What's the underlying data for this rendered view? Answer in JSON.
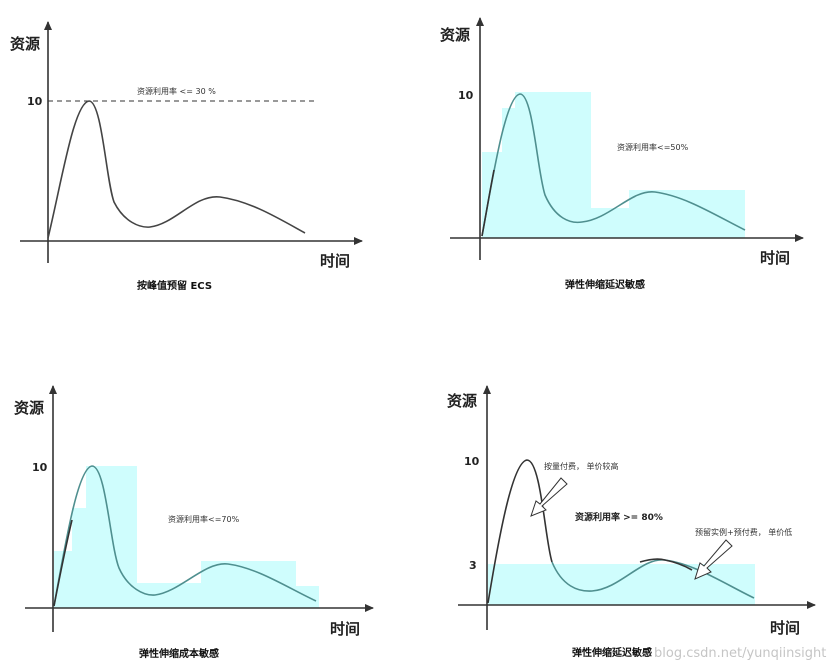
{
  "colors": {
    "fill": "#cffdfd",
    "curve_dark": "#333333",
    "curve_teal": "#4f8f8f",
    "axis": "#333333"
  },
  "panels": [
    {
      "y_axis_label": "资源",
      "x_axis_label": "时间",
      "tick_10": "10",
      "annotation": "资源利用率 <= 30 %",
      "caption": "按峰值预留 ECS"
    },
    {
      "y_axis_label": "资源",
      "x_axis_label": "时间",
      "tick_10": "10",
      "annotation": "资源利用率<=50%",
      "caption": "弹性伸缩延迟敏感"
    },
    {
      "y_axis_label": "资源",
      "x_axis_label": "时间",
      "tick_10": "10",
      "annotation": "资源利用率<=70%",
      "caption": "弹性伸缩成本敏感"
    },
    {
      "y_axis_label": "资源",
      "x_axis_label": "时间",
      "tick_10": "10",
      "tick_3": "3",
      "annotation_top": "按量付费， 单价较高",
      "annotation_mid": "资源利用率 >= 80%",
      "annotation_right": "预留实例+预付费， 单价低",
      "caption": "弹性伸缩延迟敏感"
    }
  ],
  "watermark": "blog.csdn.net/yunqiinsight"
}
